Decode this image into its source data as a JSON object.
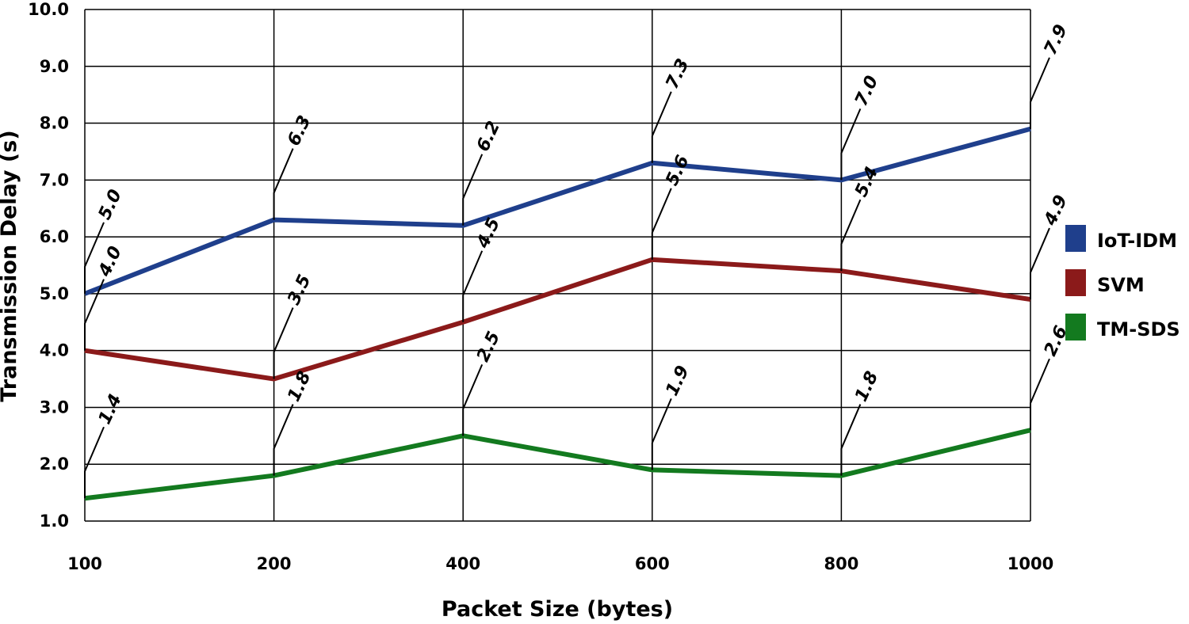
{
  "chart_data": {
    "type": "line",
    "categories": [
      "100",
      "200",
      "400",
      "600",
      "800",
      "1000"
    ],
    "series": [
      {
        "name": "IoT-IDM",
        "color": "#1f3f8c",
        "values": [
          5.0,
          6.3,
          6.2,
          7.3,
          7.0,
          7.9
        ]
      },
      {
        "name": "SVM",
        "color": "#8b1a1a",
        "values": [
          4.0,
          3.5,
          4.5,
          5.6,
          5.4,
          4.9
        ]
      },
      {
        "name": "TM-SDS",
        "color": "#137a1f",
        "values": [
          1.4,
          1.8,
          2.5,
          1.9,
          1.8,
          2.6
        ]
      }
    ],
    "xlabel": "Packet Size (bytes)",
    "ylabel": "Transmission Delay (s)",
    "ylim": [
      1.0,
      10.0
    ],
    "yticks": [
      "1.0",
      "2.0",
      "3.0",
      "4.0",
      "5.0",
      "6.0",
      "7.0",
      "8.0",
      "9.0",
      "10.0"
    ],
    "grid": true,
    "legend_position": "right",
    "data_labels": true
  }
}
